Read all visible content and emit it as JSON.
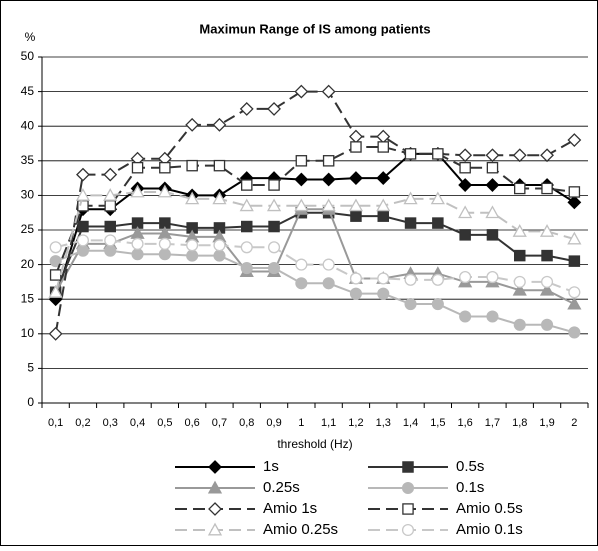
{
  "chart_data": {
    "type": "line",
    "title": "Maximun Range of IS among patients",
    "y_unit": "%",
    "x_label": "threshold (Hz)",
    "categories": [
      "0,1",
      "0,2",
      "0,3",
      "0,4",
      "0,5",
      "0,6",
      "0,7",
      "0,8",
      "0,9",
      "1",
      "1,1",
      "1,2",
      "1,3",
      "1,4",
      "1,5",
      "1,6",
      "1,7",
      "1,8",
      "1,9",
      "2"
    ],
    "ylim": [
      0,
      50
    ],
    "yticks": [
      0,
      5,
      10,
      15,
      20,
      25,
      30,
      35,
      40,
      45,
      50
    ],
    "grid": true,
    "series": [
      {
        "name": "1s",
        "color": "#000000",
        "marker": "diamond",
        "filled": true,
        "dashed": false,
        "values": [
          15,
          28,
          28,
          31,
          31,
          30,
          30,
          32.5,
          32.5,
          32.3,
          32.3,
          32.5,
          32.5,
          36,
          36,
          31.5,
          31.5,
          31.5,
          31.5,
          29
        ]
      },
      {
        "name": "0.5s",
        "color": "#333333",
        "marker": "square",
        "filled": true,
        "dashed": false,
        "values": [
          16,
          25.5,
          25.5,
          26,
          26,
          25.3,
          25.3,
          25.5,
          25.5,
          27.5,
          27.5,
          27,
          27,
          26,
          26,
          24.3,
          24.3,
          21.3,
          21.3,
          20.5
        ]
      },
      {
        "name": "0.25s",
        "color": "#999999",
        "marker": "triangle",
        "filled": true,
        "dashed": false,
        "values": [
          16,
          23,
          23,
          24.5,
          24.5,
          24,
          24,
          19,
          19,
          28,
          28,
          18,
          18,
          18.7,
          18.7,
          17.5,
          17.5,
          16.3,
          16.3,
          14.3
        ]
      },
      {
        "name": "0.1s",
        "color": "#b8b8b8",
        "marker": "circle",
        "filled": true,
        "dashed": false,
        "values": [
          20.5,
          22,
          22,
          21.5,
          21.5,
          21.3,
          21.3,
          19.5,
          19.5,
          17.3,
          17.3,
          15.8,
          15.8,
          14.3,
          14.3,
          12.5,
          12.5,
          11.3,
          11.3,
          10.2
        ]
      },
      {
        "name": "Amio 1s",
        "color": "#333333",
        "marker": "diamond",
        "filled": false,
        "dashed": true,
        "values": [
          10,
          33,
          33,
          35.3,
          35.3,
          40.2,
          40.2,
          42.5,
          42.5,
          45,
          45,
          38.5,
          38.5,
          36,
          36,
          35.8,
          35.8,
          35.8,
          35.8,
          38
        ]
      },
      {
        "name": "Amio 0.5s",
        "color": "#333333",
        "marker": "square",
        "filled": false,
        "dashed": true,
        "values": [
          18.5,
          28.5,
          28.5,
          34,
          34,
          34.3,
          34.3,
          31.5,
          31.5,
          35,
          35,
          37,
          37,
          36,
          36,
          34,
          34,
          31,
          31,
          30.5
        ]
      },
      {
        "name": "Amio 0.25s",
        "color": "#c0c0c0",
        "marker": "triangle",
        "filled": false,
        "dashed": true,
        "values": [
          16,
          30,
          30,
          30.5,
          30.5,
          29.5,
          29.5,
          28.5,
          28.5,
          28.5,
          28.5,
          28.5,
          28.5,
          29.5,
          29.5,
          27.5,
          27.5,
          24.8,
          24.8,
          23.7
        ]
      },
      {
        "name": "Amio 0.1s",
        "color": "#c8c8c8",
        "marker": "circle",
        "filled": false,
        "dashed": true,
        "values": [
          22.5,
          23.5,
          23.5,
          23,
          23,
          22.8,
          22.8,
          22.5,
          22.5,
          20,
          20,
          18,
          18,
          17.8,
          17.8,
          18.2,
          18.2,
          17.5,
          17.5,
          16
        ]
      }
    ]
  }
}
